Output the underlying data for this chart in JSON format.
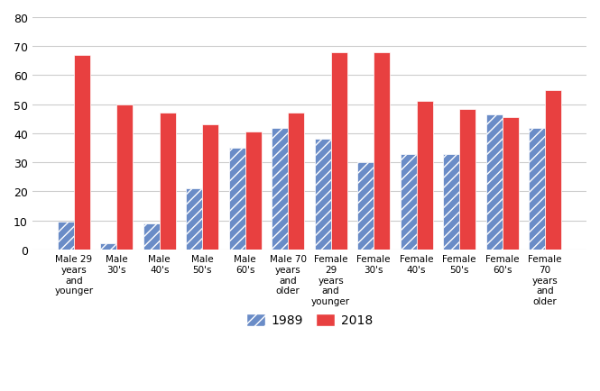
{
  "categories": [
    "Male 29\nyears\nand\nyounger",
    "Male\n30's",
    "Male\n40's",
    "Male\n50's",
    "Male\n60's",
    "Male 70\nyears\nand\nolder",
    "Female\n29\nyears\nand\nyounger",
    "Female\n30's",
    "Female\n40's",
    "Female\n50's",
    "Female\n60's",
    "Female\n70\nyears\nand\nolder"
  ],
  "values_1989": [
    9.5,
    2,
    9,
    21,
    35,
    42,
    38,
    30,
    33,
    33,
    46.5,
    42
  ],
  "values_2018": [
    67,
    50,
    47,
    43,
    40.5,
    47,
    68,
    68,
    51,
    48.5,
    45.5,
    55
  ],
  "color_1989": "#6a8cc7",
  "color_2018": "#e84040",
  "ylim": [
    0,
    80
  ],
  "yticks": [
    0,
    10,
    20,
    30,
    40,
    50,
    60,
    70,
    80
  ],
  "legend_1989": "1989",
  "legend_2018": "2018",
  "bar_width": 0.38,
  "figsize": [
    6.65,
    4.35
  ],
  "dpi": 100,
  "background_color": "#ffffff",
  "hatch_pattern": "///"
}
